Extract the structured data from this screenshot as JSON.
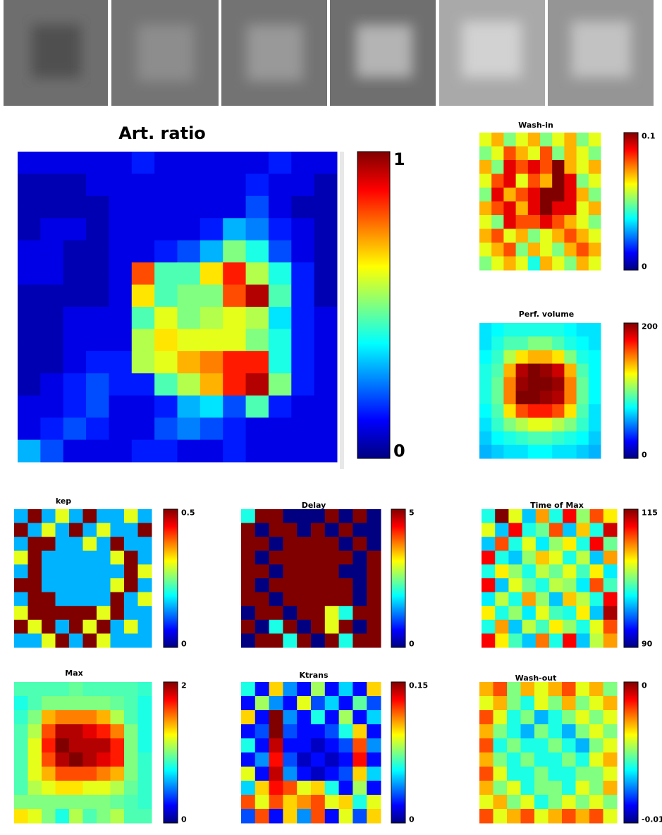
{
  "chart_data": [
    {
      "type": "heatmap",
      "title": "Art. ratio",
      "colormap": "jet",
      "clim": [
        0,
        1
      ],
      "cticks": [
        0,
        1
      ],
      "values": [
        [
          0.1,
          0.1,
          0.1,
          0.1,
          0.1,
          0.15,
          0.1,
          0.1,
          0.1,
          0.1,
          0.1,
          0.15,
          0.1,
          0.1
        ],
        [
          0.05,
          0.05,
          0.05,
          0.1,
          0.1,
          0.1,
          0.1,
          0.1,
          0.1,
          0.1,
          0.15,
          0.1,
          0.1,
          0.05
        ],
        [
          0.05,
          0.05,
          0.05,
          0.05,
          0.1,
          0.1,
          0.1,
          0.1,
          0.1,
          0.1,
          0.2,
          0.1,
          0.05,
          0.05
        ],
        [
          0.05,
          0.1,
          0.1,
          0.05,
          0.1,
          0.1,
          0.1,
          0.1,
          0.15,
          0.3,
          0.25,
          0.15,
          0.1,
          0.05
        ],
        [
          0.1,
          0.1,
          0.05,
          0.05,
          0.1,
          0.1,
          0.15,
          0.2,
          0.3,
          0.5,
          0.4,
          0.2,
          0.1,
          0.05
        ],
        [
          0.1,
          0.1,
          0.05,
          0.05,
          0.1,
          0.8,
          0.45,
          0.45,
          0.65,
          0.85,
          0.55,
          0.4,
          0.15,
          0.05
        ],
        [
          0.05,
          0.05,
          0.05,
          0.05,
          0.1,
          0.65,
          0.45,
          0.5,
          0.5,
          0.8,
          0.95,
          0.45,
          0.15,
          0.05
        ],
        [
          0.05,
          0.05,
          0.1,
          0.1,
          0.1,
          0.45,
          0.6,
          0.5,
          0.55,
          0.6,
          0.55,
          0.35,
          0.15,
          0.1
        ],
        [
          0.05,
          0.05,
          0.1,
          0.1,
          0.1,
          0.55,
          0.65,
          0.6,
          0.6,
          0.6,
          0.5,
          0.4,
          0.15,
          0.1
        ],
        [
          0.05,
          0.05,
          0.1,
          0.15,
          0.15,
          0.55,
          0.6,
          0.7,
          0.75,
          0.85,
          0.85,
          0.4,
          0.15,
          0.1
        ],
        [
          0.05,
          0.1,
          0.15,
          0.2,
          0.15,
          0.15,
          0.45,
          0.55,
          0.7,
          0.85,
          0.95,
          0.5,
          0.15,
          0.1
        ],
        [
          0.1,
          0.1,
          0.15,
          0.2,
          0.1,
          0.1,
          0.15,
          0.3,
          0.35,
          0.2,
          0.45,
          0.15,
          0.1,
          0.1
        ],
        [
          0.1,
          0.15,
          0.2,
          0.15,
          0.1,
          0.1,
          0.2,
          0.25,
          0.2,
          0.15,
          0.1,
          0.1,
          0.1,
          0.1
        ],
        [
          0.3,
          0.2,
          0.1,
          0.1,
          0.1,
          0.15,
          0.15,
          0.1,
          0.1,
          0.15,
          0.1,
          0.1,
          0.1,
          0.1
        ]
      ]
    },
    {
      "type": "heatmap",
      "title": "Wash-in",
      "colormap": "jet",
      "clim": [
        0,
        0.1
      ],
      "cticks": [
        0,
        0.1
      ],
      "values": [
        [
          0.06,
          0.07,
          0.05,
          0.06,
          0.07,
          0.05,
          0.06,
          0.07,
          0.05,
          0.06
        ],
        [
          0.05,
          0.06,
          0.08,
          0.07,
          0.06,
          0.08,
          0.05,
          0.07,
          0.06,
          0.05
        ],
        [
          0.07,
          0.05,
          0.09,
          0.08,
          0.09,
          0.08,
          0.1,
          0.07,
          0.06,
          0.07
        ],
        [
          0.06,
          0.08,
          0.09,
          0.06,
          0.08,
          0.07,
          0.1,
          0.09,
          0.05,
          0.06
        ],
        [
          0.05,
          0.09,
          0.07,
          0.08,
          0.09,
          0.1,
          0.1,
          0.09,
          0.07,
          0.05
        ],
        [
          0.07,
          0.08,
          0.09,
          0.07,
          0.09,
          0.1,
          0.09,
          0.09,
          0.06,
          0.07
        ],
        [
          0.06,
          0.05,
          0.09,
          0.08,
          0.08,
          0.09,
          0.08,
          0.07,
          0.06,
          0.05
        ],
        [
          0.07,
          0.08,
          0.06,
          0.07,
          0.05,
          0.06,
          0.07,
          0.08,
          0.07,
          0.06
        ],
        [
          0.06,
          0.07,
          0.08,
          0.05,
          0.07,
          0.06,
          0.05,
          0.07,
          0.08,
          0.07
        ],
        [
          0.05,
          0.06,
          0.07,
          0.06,
          0.04,
          0.07,
          0.06,
          0.05,
          0.07,
          0.06
        ]
      ]
    },
    {
      "type": "heatmap",
      "title": "Perf. volume",
      "colormap": "jet",
      "clim": [
        0,
        200
      ],
      "cticks": [
        0,
        200
      ],
      "values": [
        [
          70,
          75,
          80,
          80,
          80,
          80,
          80,
          75,
          70,
          70
        ],
        [
          70,
          80,
          90,
          90,
          100,
          100,
          90,
          80,
          75,
          70
        ],
        [
          75,
          85,
          110,
          130,
          140,
          140,
          130,
          100,
          80,
          75
        ],
        [
          80,
          90,
          140,
          190,
          200,
          195,
          185,
          140,
          90,
          75
        ],
        [
          80,
          95,
          150,
          195,
          200,
          200,
          195,
          150,
          95,
          75
        ],
        [
          80,
          95,
          150,
          200,
          200,
          195,
          190,
          150,
          95,
          75
        ],
        [
          75,
          90,
          130,
          160,
          170,
          170,
          160,
          130,
          90,
          70
        ],
        [
          70,
          85,
          100,
          110,
          120,
          120,
          110,
          100,
          85,
          70
        ],
        [
          65,
          75,
          80,
          85,
          90,
          90,
          85,
          80,
          75,
          65
        ],
        [
          60,
          65,
          70,
          70,
          75,
          75,
          70,
          70,
          65,
          60
        ]
      ]
    },
    {
      "type": "heatmap",
      "title": "kep",
      "colormap": "jet",
      "clim": [
        0,
        0.5
      ],
      "cticks": [
        0,
        0.5
      ],
      "values": [
        [
          0.15,
          0.5,
          0.15,
          0.3,
          0.15,
          0.5,
          0.15,
          0.15,
          0.3,
          0.15
        ],
        [
          0.5,
          0.15,
          0.3,
          0.15,
          0.5,
          0.15,
          0.3,
          0.15,
          0.15,
          0.5
        ],
        [
          0.15,
          0.5,
          0.5,
          0.15,
          0.15,
          0.3,
          0.15,
          0.5,
          0.15,
          0.15
        ],
        [
          0.3,
          0.5,
          0.15,
          0.15,
          0.15,
          0.15,
          0.15,
          0.3,
          0.5,
          0.15
        ],
        [
          0.15,
          0.5,
          0.15,
          0.15,
          0.15,
          0.15,
          0.15,
          0.15,
          0.5,
          0.3
        ],
        [
          0.5,
          0.5,
          0.15,
          0.15,
          0.15,
          0.15,
          0.15,
          0.3,
          0.5,
          0.15
        ],
        [
          0.15,
          0.5,
          0.5,
          0.15,
          0.15,
          0.15,
          0.15,
          0.5,
          0.15,
          0.3
        ],
        [
          0.3,
          0.5,
          0.5,
          0.5,
          0.5,
          0.5,
          0.3,
          0.5,
          0.15,
          0.15
        ],
        [
          0.5,
          0.3,
          0.5,
          0.15,
          0.5,
          0.3,
          0.5,
          0.15,
          0.3,
          0.15
        ],
        [
          0.15,
          0.15,
          0.3,
          0.5,
          0.15,
          0.5,
          0.3,
          0.15,
          0.15,
          0.15
        ]
      ]
    },
    {
      "type": "heatmap",
      "title": "Delay",
      "colormap": "jet",
      "clim": [
        0,
        5
      ],
      "cticks": [
        0,
        5
      ],
      "values": [
        [
          2,
          5,
          5,
          0,
          0,
          0,
          5,
          0,
          5,
          0
        ],
        [
          5,
          0,
          5,
          5,
          0,
          5,
          0,
          5,
          0,
          0
        ],
        [
          5,
          5,
          0,
          5,
          5,
          5,
          5,
          0,
          5,
          0
        ],
        [
          5,
          0,
          5,
          5,
          5,
          5,
          5,
          5,
          0,
          5
        ],
        [
          5,
          5,
          0,
          5,
          5,
          5,
          5,
          0,
          0,
          5
        ],
        [
          5,
          0,
          5,
          5,
          5,
          5,
          5,
          5,
          0,
          5
        ],
        [
          5,
          5,
          0,
          5,
          5,
          5,
          5,
          5,
          0,
          5
        ],
        [
          0,
          5,
          5,
          0,
          5,
          5,
          3,
          2,
          5,
          5
        ],
        [
          5,
          0,
          2,
          5,
          0,
          5,
          3,
          5,
          0,
          5
        ],
        [
          0,
          5,
          5,
          2,
          5,
          0,
          5,
          2,
          5,
          5
        ]
      ]
    },
    {
      "type": "heatmap",
      "title": "Time of Max",
      "colormap": "jet",
      "clim": [
        90,
        115
      ],
      "cticks": [
        90,
        115
      ],
      "values": [
        [
          100,
          115,
          105,
          98,
          108,
          100,
          112,
          103,
          110,
          106
        ],
        [
          105,
          98,
          112,
          100,
          102,
          110,
          98,
          107,
          100,
          113
        ],
        [
          98,
          110,
          100,
          105,
          99,
          103,
          106,
          100,
          112,
          102
        ],
        [
          112,
          100,
          98,
          103,
          107,
          105,
          100,
          104,
          98,
          108
        ],
        [
          100,
          106,
          103,
          100,
          104,
          102,
          105,
          101,
          106,
          99
        ],
        [
          112,
          98,
          105,
          102,
          100,
          104,
          103,
          99,
          110,
          101
        ],
        [
          99,
          104,
          100,
          108,
          103,
          98,
          107,
          104,
          100,
          112
        ],
        [
          106,
          100,
          103,
          99,
          105,
          101,
          100,
          106,
          98,
          114
        ],
        [
          100,
          108,
          98,
          104,
          101,
          106,
          103,
          100,
          105,
          110
        ],
        [
          112,
          106,
          101,
          98,
          109,
          100,
          112,
          98,
          104,
          108
        ]
      ]
    },
    {
      "type": "heatmap",
      "title": "Max",
      "colormap": "jet",
      "clim": [
        0,
        2
      ],
      "cticks": [
        0,
        2
      ],
      "values": [
        [
          0.9,
          0.9,
          0.9,
          0.9,
          0.95,
          0.9,
          0.9,
          0.9,
          0.9,
          0.85
        ],
        [
          0.8,
          0.9,
          1.0,
          1.0,
          1.0,
          1.0,
          1.0,
          0.95,
          0.9,
          0.8
        ],
        [
          0.85,
          1.0,
          1.4,
          1.5,
          1.5,
          1.5,
          1.4,
          1.1,
          0.9,
          0.8
        ],
        [
          0.9,
          1.1,
          1.6,
          1.9,
          1.9,
          1.8,
          1.7,
          1.5,
          1.0,
          0.8
        ],
        [
          0.9,
          1.2,
          1.7,
          2.0,
          1.9,
          1.9,
          1.9,
          1.7,
          1.0,
          0.8
        ],
        [
          0.9,
          1.2,
          1.6,
          1.9,
          2.0,
          1.9,
          1.8,
          1.7,
          1.0,
          0.85
        ],
        [
          0.9,
          1.2,
          1.4,
          1.6,
          1.6,
          1.6,
          1.5,
          1.4,
          1.0,
          0.85
        ],
        [
          0.9,
          1.1,
          1.2,
          1.3,
          1.3,
          1.2,
          1.2,
          1.1,
          0.95,
          0.85
        ],
        [
          1.0,
          1.0,
          1.0,
          1.0,
          1.0,
          1.0,
          1.0,
          0.95,
          0.9,
          0.85
        ],
        [
          1.3,
          1.2,
          1.0,
          0.8,
          1.1,
          0.9,
          1.0,
          1.1,
          0.9,
          0.9
        ]
      ]
    },
    {
      "type": "heatmap",
      "title": "Ktrans",
      "colormap": "jet",
      "clim": [
        0,
        0.15
      ],
      "cticks": [
        0,
        0.15
      ],
      "values": [
        [
          0.06,
          0.02,
          0.1,
          0.04,
          0.02,
          0.08,
          0.02,
          0.05,
          0.02,
          0.1
        ],
        [
          0.02,
          0.08,
          0.04,
          0.02,
          0.09,
          0.03,
          0.05,
          0.02,
          0.07,
          0.03
        ],
        [
          0.1,
          0.02,
          0.15,
          0.04,
          0.02,
          0.06,
          0.02,
          0.08,
          0.02,
          0.05
        ],
        [
          0.02,
          0.03,
          0.15,
          0.03,
          0.02,
          0.02,
          0.03,
          0.06,
          0.1,
          0.02
        ],
        [
          0.06,
          0.02,
          0.14,
          0.02,
          0.02,
          0.01,
          0.02,
          0.03,
          0.12,
          0.04
        ],
        [
          0.02,
          0.04,
          0.13,
          0.03,
          0.01,
          0.02,
          0.01,
          0.02,
          0.13,
          0.02
        ],
        [
          0.09,
          0.02,
          0.14,
          0.04,
          0.02,
          0.01,
          0.02,
          0.03,
          0.1,
          0.05
        ],
        [
          0.05,
          0.1,
          0.13,
          0.12,
          0.09,
          0.1,
          0.06,
          0.02,
          0.08,
          0.02
        ],
        [
          0.12,
          0.09,
          0.12,
          0.1,
          0.11,
          0.12,
          0.09,
          0.1,
          0.06,
          0.09
        ],
        [
          0.03,
          0.12,
          0.02,
          0.1,
          0.04,
          0.12,
          0.02,
          0.09,
          0.03,
          0.1
        ]
      ]
    },
    {
      "type": "heatmap",
      "title": "Wash-out",
      "colormap": "jet",
      "clim": [
        -0.01,
        0
      ],
      "cticks": [
        -0.01,
        0
      ],
      "values": [
        [
          -0.003,
          -0.002,
          -0.005,
          -0.003,
          -0.004,
          -0.003,
          -0.002,
          -0.004,
          -0.003,
          -0.005
        ],
        [
          -0.004,
          -0.003,
          -0.005,
          -0.006,
          -0.004,
          -0.005,
          -0.003,
          -0.005,
          -0.004,
          -0.003
        ],
        [
          -0.002,
          -0.004,
          -0.006,
          -0.005,
          -0.007,
          -0.006,
          -0.005,
          -0.004,
          -0.005,
          -0.004
        ],
        [
          -0.003,
          -0.005,
          -0.006,
          -0.007,
          -0.005,
          -0.006,
          -0.007,
          -0.005,
          -0.004,
          -0.005
        ],
        [
          -0.002,
          -0.006,
          -0.005,
          -0.006,
          -0.006,
          -0.005,
          -0.006,
          -0.007,
          -0.005,
          -0.004
        ],
        [
          -0.003,
          -0.005,
          -0.006,
          -0.005,
          -0.006,
          -0.006,
          -0.005,
          -0.006,
          -0.004,
          -0.003
        ],
        [
          -0.002,
          -0.004,
          -0.006,
          -0.006,
          -0.005,
          -0.006,
          -0.006,
          -0.005,
          -0.005,
          -0.004
        ],
        [
          -0.003,
          -0.005,
          -0.004,
          -0.006,
          -0.005,
          -0.005,
          -0.006,
          -0.004,
          -0.005,
          -0.003
        ],
        [
          -0.004,
          -0.003,
          -0.005,
          -0.004,
          -0.006,
          -0.005,
          -0.004,
          -0.005,
          -0.004,
          -0.005
        ],
        [
          -0.002,
          -0.004,
          -0.003,
          -0.002,
          -0.004,
          -0.003,
          -0.002,
          -0.003,
          -0.002,
          -0.004
        ]
      ]
    }
  ]
}
